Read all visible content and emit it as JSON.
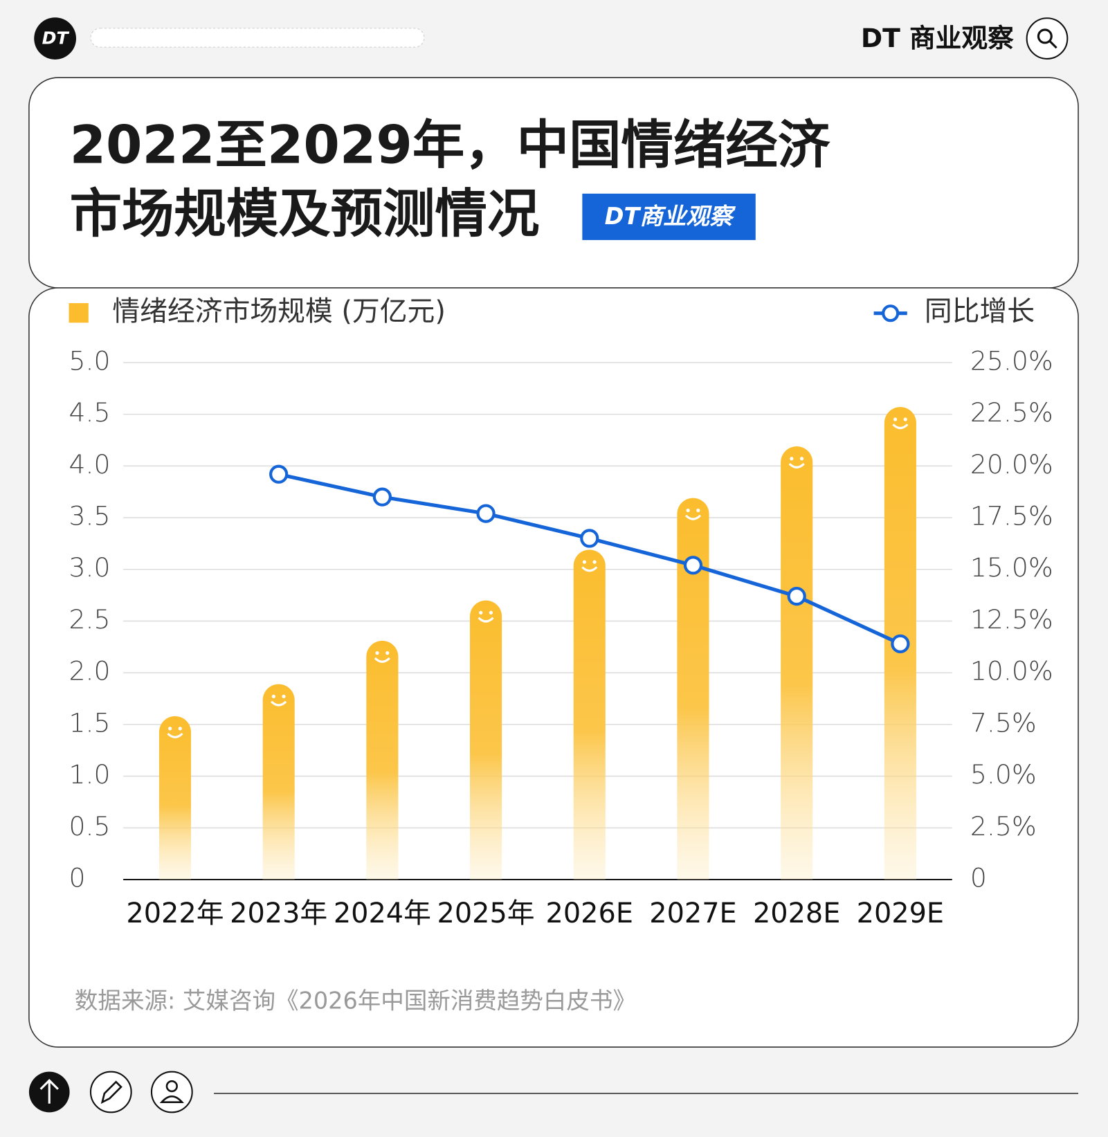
{
  "header": {
    "logo": "DT",
    "brand": "DT 商业观察"
  },
  "chart_data": {
    "type": "bar-line",
    "title": [
      "2022至2029年，中国情绪经济",
      "市场规模及预测情况"
    ],
    "badge": "DT商业观察",
    "categories": [
      "2022年",
      "2023年",
      "2024年",
      "2025年",
      "2026E",
      "2027E",
      "2028E",
      "2029E"
    ],
    "series": [
      {
        "name": "情绪经济市场规模 (万亿元)",
        "type": "bar",
        "color": "#fbbd2e",
        "values": [
          1.58,
          1.89,
          2.31,
          2.7,
          3.19,
          3.69,
          4.19,
          4.57
        ]
      },
      {
        "name": "同比增长",
        "type": "line",
        "axis": "y2",
        "color": "#1565d8",
        "values": [
          null,
          19.6,
          18.5,
          17.7,
          16.5,
          15.2,
          13.7,
          11.4
        ]
      }
    ],
    "ylim": [
      0,
      5
    ],
    "yticks": [
      0,
      {
        "value": 0.5,
        "label": "0.5"
      },
      {
        "value": 1,
        "label": "1.0"
      },
      1.5,
      {
        "value": 2,
        "label": "2.0"
      },
      2.5,
      {
        "value": 3,
        "label": "3.0"
      },
      3.5,
      {
        "value": 4,
        "label": "4.0"
      },
      4.5,
      {
        "value": 5,
        "label": "5.0"
      }
    ],
    "y2lim": [
      0,
      25
    ],
    "y2ticks": [
      0,
      {
        "value": 2.5,
        "label": "2.5%"
      },
      {
        "value": 5,
        "label": "5.0%"
      },
      {
        "value": 7.5,
        "label": "7.5%"
      },
      {
        "value": 10,
        "label": "10.0%"
      },
      {
        "value": 12.5,
        "label": "12.5%"
      },
      {
        "value": 15,
        "label": "15.0%"
      },
      {
        "value": 17.5,
        "label": "17.5%"
      },
      {
        "value": 20,
        "label": "20.0%"
      },
      {
        "value": 22.5,
        "label": "22.5%"
      },
      {
        "value": 25,
        "label": "25.0%"
      }
    ],
    "grid": true,
    "source": "数据来源: 艾媒咨询《2026年中国新消费趋势白皮书》"
  }
}
